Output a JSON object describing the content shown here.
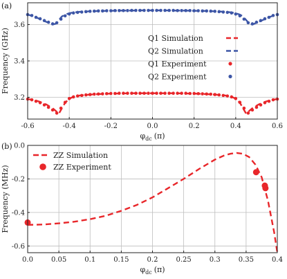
{
  "colors": {
    "red": "#e8262a",
    "blue": "#3d56a6",
    "grid": "#bdbdbd"
  },
  "chart_data": [
    {
      "panel_label": "(a)",
      "type": "line",
      "xlabel": "φ",
      "xlabel_sub": "dc",
      "xlabel_unit": "(π)",
      "ylabel": "Frequency (GHz)",
      "xlim": [
        -0.6,
        0.6
      ],
      "ylim": [
        3.08,
        3.72
      ],
      "xticks": [
        -0.6,
        -0.4,
        -0.2,
        0.0,
        0.2,
        0.4,
        0.6
      ],
      "xtick_labels": [
        "-0.6",
        "-0.4",
        "-0.2",
        "0.0",
        "0.2",
        "0.4",
        "0.6"
      ],
      "yticks": [
        3.2,
        3.4,
        3.6
      ],
      "ytick_labels": [
        "3.2",
        "3.4",
        "3.6"
      ],
      "grid": true,
      "legend_position": "right-center",
      "series": [
        {
          "name": "Q1 Simulation",
          "style": "dashed",
          "color": "#e8262a",
          "x": [
            -0.6,
            -0.57,
            -0.54,
            -0.51,
            -0.48,
            -0.465,
            -0.45,
            -0.435,
            -0.42,
            -0.4,
            -0.38,
            -0.35,
            -0.3,
            -0.25,
            -0.2,
            -0.15,
            -0.1,
            -0.05,
            0.0,
            0.05,
            0.1,
            0.15,
            0.2,
            0.25,
            0.3,
            0.35,
            0.38,
            0.4,
            0.42,
            0.435,
            0.45,
            0.465,
            0.48,
            0.51,
            0.54,
            0.57,
            0.6
          ],
          "y": [
            3.19,
            3.185,
            3.175,
            3.16,
            3.14,
            3.125,
            3.11,
            3.14,
            3.17,
            3.192,
            3.203,
            3.21,
            3.215,
            3.218,
            3.22,
            3.221,
            3.222,
            3.222,
            3.222,
            3.222,
            3.222,
            3.221,
            3.22,
            3.218,
            3.215,
            3.21,
            3.203,
            3.192,
            3.17,
            3.14,
            3.11,
            3.125,
            3.14,
            3.16,
            3.175,
            3.185,
            3.19
          ]
        },
        {
          "name": "Q2 Simulation",
          "style": "dashed",
          "color": "#3d56a6",
          "x": [
            -0.6,
            -0.57,
            -0.54,
            -0.51,
            -0.48,
            -0.465,
            -0.45,
            -0.435,
            -0.42,
            -0.4,
            -0.38,
            -0.35,
            -0.3,
            -0.25,
            -0.2,
            -0.15,
            -0.1,
            -0.05,
            0.0,
            0.05,
            0.1,
            0.15,
            0.2,
            0.25,
            0.3,
            0.35,
            0.38,
            0.4,
            0.42,
            0.435,
            0.45,
            0.465,
            0.48,
            0.51,
            0.54,
            0.57,
            0.6
          ],
          "y": [
            3.655,
            3.645,
            3.63,
            3.615,
            3.6,
            3.605,
            3.625,
            3.645,
            3.655,
            3.662,
            3.667,
            3.67,
            3.673,
            3.675,
            3.676,
            3.677,
            3.677,
            3.678,
            3.678,
            3.678,
            3.677,
            3.677,
            3.676,
            3.675,
            3.673,
            3.67,
            3.667,
            3.662,
            3.655,
            3.645,
            3.625,
            3.605,
            3.6,
            3.615,
            3.63,
            3.645,
            3.655
          ]
        },
        {
          "name": "Q1 Experiment",
          "style": "markers",
          "color": "#e8262a",
          "x": [
            -0.6,
            -0.58,
            -0.56,
            -0.54,
            -0.52,
            -0.5,
            -0.48,
            -0.46,
            -0.44,
            -0.42,
            -0.4,
            -0.38,
            -0.36,
            -0.34,
            -0.32,
            -0.3,
            -0.28,
            -0.26,
            -0.24,
            -0.22,
            -0.2,
            -0.18,
            -0.16,
            -0.14,
            -0.12,
            -0.1,
            -0.08,
            -0.06,
            -0.04,
            -0.02,
            0.0,
            0.02,
            0.04,
            0.06,
            0.08,
            0.1,
            0.12,
            0.14,
            0.16,
            0.18,
            0.2,
            0.22,
            0.24,
            0.26,
            0.28,
            0.3,
            0.32,
            0.34,
            0.36,
            0.38,
            0.4,
            0.42,
            0.44,
            0.46,
            0.48,
            0.5,
            0.52,
            0.54,
            0.56,
            0.58,
            0.6
          ],
          "y": [
            3.19,
            3.186,
            3.178,
            3.17,
            3.158,
            3.145,
            3.13,
            3.113,
            3.14,
            3.172,
            3.193,
            3.202,
            3.207,
            3.21,
            3.213,
            3.215,
            3.217,
            3.218,
            3.219,
            3.22,
            3.221,
            3.221,
            3.222,
            3.222,
            3.222,
            3.222,
            3.222,
            3.222,
            3.222,
            3.222,
            3.222,
            3.222,
            3.222,
            3.222,
            3.222,
            3.222,
            3.222,
            3.222,
            3.222,
            3.221,
            3.221,
            3.22,
            3.219,
            3.218,
            3.217,
            3.215,
            3.213,
            3.21,
            3.207,
            3.202,
            3.193,
            3.172,
            3.14,
            3.113,
            3.13,
            3.145,
            3.158,
            3.17,
            3.178,
            3.186,
            3.19
          ]
        },
        {
          "name": "Q2 Experiment",
          "style": "markers",
          "color": "#3d56a6",
          "x": [
            -0.6,
            -0.58,
            -0.56,
            -0.54,
            -0.52,
            -0.5,
            -0.48,
            -0.46,
            -0.44,
            -0.42,
            -0.4,
            -0.38,
            -0.36,
            -0.34,
            -0.32,
            -0.3,
            -0.28,
            -0.26,
            -0.24,
            -0.22,
            -0.2,
            -0.18,
            -0.16,
            -0.14,
            -0.12,
            -0.1,
            -0.08,
            -0.06,
            -0.04,
            -0.02,
            0.0,
            0.02,
            0.04,
            0.06,
            0.08,
            0.1,
            0.12,
            0.14,
            0.16,
            0.18,
            0.2,
            0.22,
            0.24,
            0.26,
            0.28,
            0.3,
            0.32,
            0.34,
            0.36,
            0.38,
            0.4,
            0.42,
            0.44,
            0.46,
            0.48,
            0.5,
            0.52,
            0.54,
            0.56,
            0.58,
            0.6
          ],
          "y": [
            3.655,
            3.65,
            3.64,
            3.632,
            3.622,
            3.613,
            3.604,
            3.61,
            3.63,
            3.648,
            3.658,
            3.664,
            3.667,
            3.669,
            3.671,
            3.673,
            3.674,
            3.675,
            3.675,
            3.676,
            3.676,
            3.677,
            3.677,
            3.677,
            3.677,
            3.678,
            3.678,
            3.678,
            3.678,
            3.678,
            3.678,
            3.678,
            3.678,
            3.678,
            3.678,
            3.678,
            3.677,
            3.677,
            3.677,
            3.677,
            3.676,
            3.676,
            3.675,
            3.675,
            3.674,
            3.673,
            3.671,
            3.669,
            3.667,
            3.664,
            3.658,
            3.648,
            3.63,
            3.61,
            3.604,
            3.613,
            3.622,
            3.632,
            3.64,
            3.65,
            3.655
          ]
        }
      ]
    },
    {
      "panel_label": "(b)",
      "type": "line",
      "xlabel": "φ",
      "xlabel_sub": "dc",
      "xlabel_unit": "(π)",
      "ylabel": "Frequency (MHz)",
      "xlim": [
        0.0,
        0.4
      ],
      "ylim": [
        -0.64,
        0.0
      ],
      "xticks": [
        0.0,
        0.05,
        0.1,
        0.15,
        0.2,
        0.25,
        0.3,
        0.35,
        0.4
      ],
      "xtick_labels": [
        "0.0",
        "0.05",
        "0.1",
        "0.15",
        "0.2",
        "0.25",
        "0.3",
        "0.35",
        "0.4"
      ],
      "yticks": [
        0.0,
        -0.2,
        -0.4,
        -0.6
      ],
      "ytick_labels": [
        "0.0",
        "-0.2",
        "-0.4",
        "-0.6"
      ],
      "grid": true,
      "legend_position": "top-left",
      "series": [
        {
          "name": "ZZ Simulation",
          "style": "dashed",
          "color": "#e8262a",
          "x": [
            0.0,
            0.025,
            0.05,
            0.075,
            0.1,
            0.125,
            0.15,
            0.175,
            0.2,
            0.225,
            0.25,
            0.275,
            0.3,
            0.315,
            0.325,
            0.335,
            0.345,
            0.355,
            0.365,
            0.375,
            0.385,
            0.395,
            0.4
          ],
          "y": [
            -0.474,
            -0.472,
            -0.465,
            -0.455,
            -0.44,
            -0.42,
            -0.39,
            -0.355,
            -0.31,
            -0.255,
            -0.2,
            -0.14,
            -0.085,
            -0.06,
            -0.05,
            -0.045,
            -0.05,
            -0.07,
            -0.115,
            -0.19,
            -0.33,
            -0.52,
            -0.64
          ]
        },
        {
          "name": "ZZ Experiment",
          "style": "markers",
          "color": "#e8262a",
          "x": [
            0.0,
            0.366,
            0.38,
            0.381
          ],
          "y": [
            -0.46,
            -0.16,
            -0.24,
            -0.255
          ]
        }
      ]
    }
  ]
}
